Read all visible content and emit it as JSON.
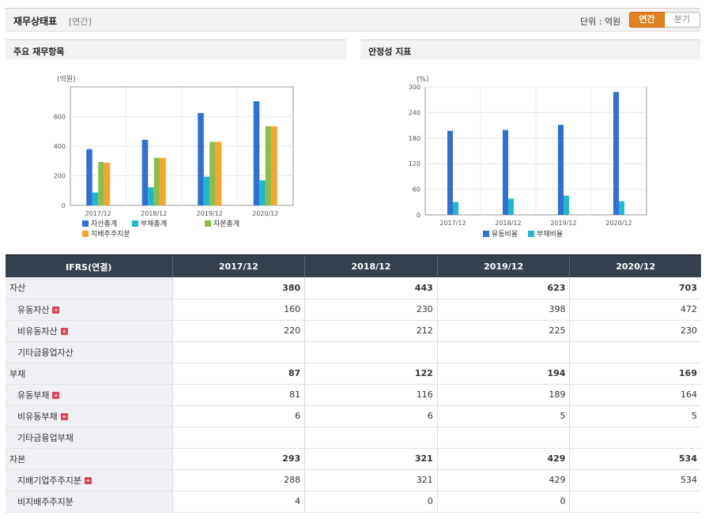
{
  "header": {
    "title": "재무상태표",
    "subtitle": "[연간]",
    "unit_label": "단위 : 억원",
    "toggle_annual": "연간",
    "toggle_quarter": "분기"
  },
  "panel_left": {
    "title": "주요 재무항목"
  },
  "panel_right": {
    "title": "안정성 지표"
  },
  "chart_data": [
    {
      "type": "bar",
      "ylabel": "(억원)",
      "categories": [
        "2017/12",
        "2018/12",
        "2019/12",
        "2020/12"
      ],
      "ylim": [
        0,
        800
      ],
      "yticks": [
        0,
        200,
        400,
        600
      ],
      "series": [
        {
          "name": "자산총계",
          "color": "#2f6fd6",
          "values": [
            380,
            443,
            623,
            703
          ]
        },
        {
          "name": "부채총계",
          "color": "#1fb9c9",
          "values": [
            87,
            122,
            194,
            169
          ]
        },
        {
          "name": "자본총계",
          "color": "#8bbd4a",
          "values": [
            293,
            321,
            429,
            534
          ]
        },
        {
          "name": "지배주주지분",
          "color": "#f5a631",
          "values": [
            288,
            321,
            429,
            534
          ]
        }
      ],
      "legend_position": "bottom"
    },
    {
      "type": "bar",
      "ylabel": "(%)",
      "categories": [
        "2017/12",
        "2018/12",
        "2019/12",
        "2020/12"
      ],
      "ylim": [
        0,
        300
      ],
      "yticks": [
        0,
        60,
        120,
        180,
        240,
        300
      ],
      "series": [
        {
          "name": "유동비율",
          "color": "#2f6fd6",
          "values": [
            197,
            199,
            211,
            288
          ]
        },
        {
          "name": "부채비율",
          "color": "#1fb9c9",
          "values": [
            30,
            38,
            45,
            32
          ]
        }
      ],
      "legend_position": "bottom"
    }
  ],
  "table": {
    "header": [
      "IFRS(연결)",
      "2017/12",
      "2018/12",
      "2019/12",
      "2020/12"
    ],
    "rows": [
      {
        "label": "자산",
        "values": [
          "380",
          "443",
          "623",
          "703"
        ],
        "bold": true,
        "indent": false,
        "plus": false
      },
      {
        "label": "유동자산",
        "values": [
          "160",
          "230",
          "398",
          "472"
        ],
        "bold": false,
        "indent": true,
        "plus": true
      },
      {
        "label": "비유동자산",
        "values": [
          "220",
          "212",
          "225",
          "230"
        ],
        "bold": false,
        "indent": true,
        "plus": true
      },
      {
        "label": "기타금융업자산",
        "values": [
          "",
          "",
          "",
          ""
        ],
        "bold": false,
        "indent": true,
        "plus": false
      },
      {
        "label": "부채",
        "values": [
          "87",
          "122",
          "194",
          "169"
        ],
        "bold": true,
        "indent": false,
        "plus": false
      },
      {
        "label": "유동부채",
        "values": [
          "81",
          "116",
          "189",
          "164"
        ],
        "bold": false,
        "indent": true,
        "plus": true
      },
      {
        "label": "비유동부채",
        "values": [
          "6",
          "6",
          "5",
          "5"
        ],
        "bold": false,
        "indent": true,
        "plus": true
      },
      {
        "label": "기타금융업부채",
        "values": [
          "",
          "",
          "",
          ""
        ],
        "bold": false,
        "indent": true,
        "plus": false
      },
      {
        "label": "자본",
        "values": [
          "293",
          "321",
          "429",
          "534"
        ],
        "bold": true,
        "indent": false,
        "plus": false
      },
      {
        "label": "지배기업주주지분",
        "values": [
          "288",
          "321",
          "429",
          "534"
        ],
        "bold": false,
        "indent": true,
        "plus": true
      },
      {
        "label": "비지배주주지분",
        "values": [
          "4",
          "0",
          "0",
          ""
        ],
        "bold": false,
        "indent": true,
        "plus": false
      }
    ],
    "plus_glyph": "+"
  }
}
